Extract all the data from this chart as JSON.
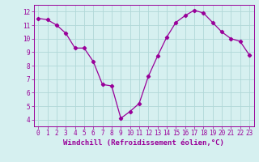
{
  "x": [
    0,
    1,
    2,
    3,
    4,
    5,
    6,
    7,
    8,
    9,
    10,
    11,
    12,
    13,
    14,
    15,
    16,
    17,
    18,
    19,
    20,
    21,
    22,
    23
  ],
  "y": [
    11.5,
    11.4,
    11.0,
    10.4,
    9.3,
    9.3,
    8.3,
    6.6,
    6.5,
    4.1,
    4.6,
    5.2,
    7.2,
    8.7,
    10.1,
    11.2,
    11.7,
    12.1,
    11.9,
    11.2,
    10.5,
    10.0,
    9.8,
    8.8
  ],
  "line_color": "#990099",
  "marker": "D",
  "marker_size": 2.2,
  "bg_color": "#d6f0f0",
  "grid_color": "#b0d8d8",
  "xlabel": "Windchill (Refroidissement éolien,°C)",
  "xlim": [
    -0.5,
    23.5
  ],
  "ylim": [
    3.5,
    12.5
  ],
  "yticks": [
    4,
    5,
    6,
    7,
    8,
    9,
    10,
    11,
    12
  ],
  "xticks": [
    0,
    1,
    2,
    3,
    4,
    5,
    6,
    7,
    8,
    9,
    10,
    11,
    12,
    13,
    14,
    15,
    16,
    17,
    18,
    19,
    20,
    21,
    22,
    23
  ],
  "tick_color": "#990099",
  "label_color": "#990099",
  "spine_color": "#990099",
  "xlabel_fontsize": 6.5,
  "tick_fontsize": 5.5
}
